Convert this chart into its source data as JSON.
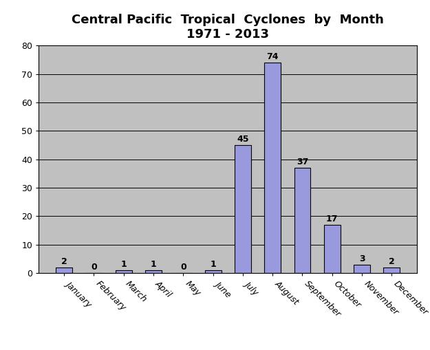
{
  "title_line1": "Central Pacific  Tropical  Cyclones  by  Month",
  "title_line2": "1971 - 2013",
  "categories": [
    "January",
    "February",
    "March",
    "April",
    "May",
    "June",
    "July",
    "August",
    "September",
    "October",
    "November",
    "December"
  ],
  "values": [
    2,
    0,
    1,
    1,
    0,
    1,
    45,
    74,
    37,
    17,
    3,
    2
  ],
  "bar_color": "#9999DD",
  "bar_edgecolor": "#000000",
  "plot_bg_color": "#C0C0C0",
  "fig_bg_color": "#FFFFFF",
  "ylim": [
    0,
    80
  ],
  "yticks": [
    0,
    10,
    20,
    30,
    40,
    50,
    60,
    70,
    80
  ],
  "title_fontsize": 13,
  "title_fontweight": "bold",
  "tick_label_fontsize": 9,
  "value_label_fontsize": 9,
  "grid_color": "#000000",
  "grid_linewidth": 0.7,
  "bar_width": 0.55
}
